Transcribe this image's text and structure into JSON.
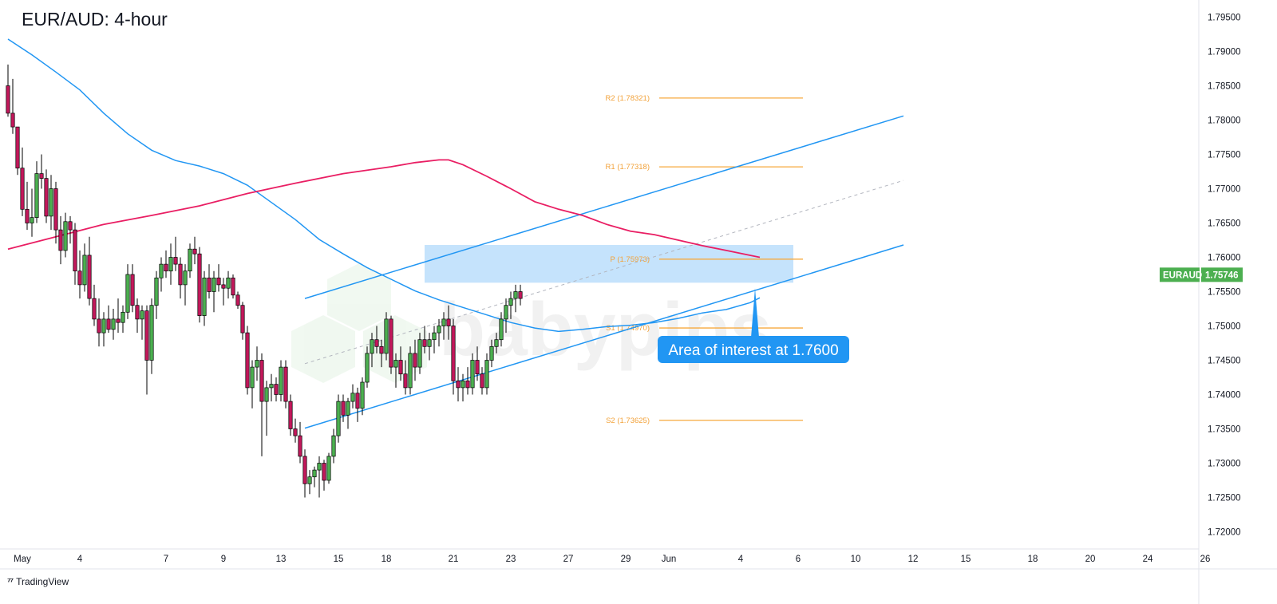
{
  "title": "EUR/AUD: 4-hour",
  "brand": "TradingView",
  "watermark": "babypips",
  "callout": "Area of interest at 1.7600",
  "price_badge": {
    "symbol": "EURAUD",
    "price": "1.75746"
  },
  "colors": {
    "bull": "#4caf50",
    "bear": "#c2185b",
    "ma_fast": "#2196f3",
    "ma_slow": "#e91e63",
    "channel": "#2196f3",
    "pivot": "#f7a93c",
    "zone": "#bbdefb",
    "callout": "#2196f3"
  },
  "chart_data": {
    "type": "candlestick",
    "symbol": "EURAUD",
    "timeframe": "4-hour",
    "ylim": [
      1.7175,
      1.7975
    ],
    "y_ticks": [
      "1.79500",
      "1.79000",
      "1.78500",
      "1.78000",
      "1.77500",
      "1.77000",
      "1.76500",
      "1.76000",
      "1.75500",
      "1.75000",
      "1.74500",
      "1.74000",
      "1.73500",
      "1.73000",
      "1.72500",
      "1.72000"
    ],
    "x_ticks": [
      {
        "label": "May",
        "bar": 3
      },
      {
        "label": "4",
        "bar": 15
      },
      {
        "label": "7",
        "bar": 33
      },
      {
        "label": "9",
        "bar": 45
      },
      {
        "label": "13",
        "bar": 57
      },
      {
        "label": "15",
        "bar": 69
      },
      {
        "label": "18",
        "bar": 79
      },
      {
        "label": "21",
        "bar": 93
      },
      {
        "label": "23",
        "bar": 105
      },
      {
        "label": "27",
        "bar": 117
      },
      {
        "label": "29",
        "bar": 129
      },
      {
        "label": "Jun",
        "bar": 138
      },
      {
        "label": "4",
        "bar": 153
      },
      {
        "label": "6",
        "bar": 165
      },
      {
        "label": "10",
        "bar": 177
      },
      {
        "label": "12",
        "bar": 189
      },
      {
        "label": "15",
        "bar": 200
      },
      {
        "label": "18",
        "bar": 214
      },
      {
        "label": "20",
        "bar": 226
      },
      {
        "label": "24",
        "bar": 238
      },
      {
        "label": "26",
        "bar": 250
      }
    ],
    "last_price": 1.75746,
    "pivots": [
      {
        "label": "R2 (1.78321)",
        "value": 1.78321
      },
      {
        "label": "R1 (1.77318)",
        "value": 1.77318
      },
      {
        "label": "P (1.75973)",
        "value": 1.75973
      },
      {
        "label": "S1 (1.74970)",
        "value": 1.7497
      },
      {
        "label": "S2 (1.73625)",
        "value": 1.73625
      }
    ],
    "zone": {
      "bar_start": 87,
      "bar_end": 164,
      "low": 1.7563,
      "high": 1.7618
    },
    "channel": {
      "lower": [
        [
          62,
          1.7351
        ],
        [
          187,
          1.7618
        ]
      ],
      "upper": [
        [
          62,
          1.754
        ],
        [
          187,
          1.7806
        ]
      ],
      "middle": [
        [
          62,
          1.7445
        ],
        [
          187,
          1.7712
        ]
      ]
    },
    "ma_fast": [
      [
        0,
        1.7918
      ],
      [
        5,
        1.7895
      ],
      [
        10,
        1.787
      ],
      [
        15,
        1.7844
      ],
      [
        20,
        1.781
      ],
      [
        25,
        1.778
      ],
      [
        30,
        1.7756
      ],
      [
        35,
        1.7741
      ],
      [
        40,
        1.7733
      ],
      [
        45,
        1.7722
      ],
      [
        50,
        1.7705
      ],
      [
        55,
        1.768
      ],
      [
        60,
        1.7655
      ],
      [
        65,
        1.7626
      ],
      [
        70,
        1.7605
      ],
      [
        75,
        1.7585
      ],
      [
        80,
        1.7568
      ],
      [
        85,
        1.7551
      ],
      [
        90,
        1.7538
      ],
      [
        95,
        1.7527
      ],
      [
        100,
        1.7516
      ],
      [
        105,
        1.7505
      ],
      [
        110,
        1.7497
      ],
      [
        115,
        1.7492
      ],
      [
        120,
        1.7495
      ],
      [
        125,
        1.7499
      ],
      [
        130,
        1.7501
      ],
      [
        135,
        1.7505
      ],
      [
        140,
        1.7511
      ],
      [
        145,
        1.7519
      ],
      [
        150,
        1.7524
      ],
      [
        155,
        1.7534
      ],
      [
        157,
        1.7541
      ]
    ],
    "ma_slow": [
      [
        0,
        1.7612
      ],
      [
        10,
        1.763
      ],
      [
        20,
        1.7648
      ],
      [
        30,
        1.7661
      ],
      [
        40,
        1.7675
      ],
      [
        50,
        1.7693
      ],
      [
        60,
        1.7708
      ],
      [
        70,
        1.7722
      ],
      [
        80,
        1.7732
      ],
      [
        85,
        1.7738
      ],
      [
        90,
        1.7742
      ],
      [
        92,
        1.7742
      ],
      [
        95,
        1.7735
      ],
      [
        100,
        1.7718
      ],
      [
        105,
        1.77
      ],
      [
        110,
        1.7681
      ],
      [
        115,
        1.767
      ],
      [
        120,
        1.7661
      ],
      [
        125,
        1.7648
      ],
      [
        130,
        1.7638
      ],
      [
        135,
        1.7633
      ],
      [
        140,
        1.7625
      ],
      [
        145,
        1.7617
      ],
      [
        150,
        1.761
      ],
      [
        157,
        1.76
      ]
    ],
    "candles": [
      [
        1.785,
        1.7881,
        1.7805,
        1.781
      ],
      [
        1.781,
        1.786,
        1.778,
        1.779
      ],
      [
        1.779,
        1.779,
        1.772,
        1.773
      ],
      [
        1.773,
        1.776,
        1.766,
        1.767
      ],
      [
        1.767,
        1.771,
        1.764,
        1.765
      ],
      [
        1.765,
        1.77,
        1.763,
        1.7658
      ],
      [
        1.7658,
        1.774,
        1.765,
        1.7722
      ],
      [
        1.7722,
        1.775,
        1.77,
        1.7715
      ],
      [
        1.7715,
        1.7728,
        1.765,
        1.766
      ],
      [
        1.766,
        1.772,
        1.764,
        1.77
      ],
      [
        1.77,
        1.771,
        1.762,
        1.764
      ],
      [
        1.764,
        1.766,
        1.759,
        1.761
      ],
      [
        1.761,
        1.7665,
        1.76,
        1.7652
      ],
      [
        1.7652,
        1.766,
        1.762,
        1.764
      ],
      [
        1.764,
        1.765,
        1.756,
        1.758
      ],
      [
        1.758,
        1.761,
        1.754,
        1.756
      ],
      [
        1.756,
        1.762,
        1.755,
        1.7603
      ],
      [
        1.7603,
        1.763,
        1.753,
        1.754
      ],
      [
        1.754,
        1.756,
        1.75,
        1.751
      ],
      [
        1.751,
        1.754,
        1.747,
        1.749
      ],
      [
        1.749,
        1.752,
        1.747,
        1.751
      ],
      [
        1.751,
        1.753,
        1.749,
        1.7495
      ],
      [
        1.7495,
        1.7525,
        1.748,
        1.751
      ],
      [
        1.751,
        1.754,
        1.749,
        1.7505
      ],
      [
        1.7505,
        1.753,
        1.749,
        1.752
      ],
      [
        1.752,
        1.759,
        1.751,
        1.7575
      ],
      [
        1.7575,
        1.759,
        1.752,
        1.753
      ],
      [
        1.753,
        1.754,
        1.749,
        1.751
      ],
      [
        1.751,
        1.753,
        1.748,
        1.7522
      ],
      [
        1.7522,
        1.753,
        1.74,
        1.745
      ],
      [
        1.745,
        1.754,
        1.743,
        1.753
      ],
      [
        1.753,
        1.758,
        1.751,
        1.757
      ],
      [
        1.757,
        1.76,
        1.755,
        1.759
      ],
      [
        1.759,
        1.761,
        1.757,
        1.758
      ],
      [
        1.758,
        1.762,
        1.756,
        1.76
      ],
      [
        1.76,
        1.763,
        1.758,
        1.759
      ],
      [
        1.759,
        1.76,
        1.754,
        1.756
      ],
      [
        1.756,
        1.759,
        1.753,
        1.758
      ],
      [
        1.758,
        1.762,
        1.757,
        1.7612
      ],
      [
        1.7612,
        1.763,
        1.759,
        1.7605
      ],
      [
        1.7605,
        1.7615,
        1.7505,
        1.7515
      ],
      [
        1.7515,
        1.758,
        1.75,
        1.757
      ],
      [
        1.757,
        1.759,
        1.754,
        1.755
      ],
      [
        1.755,
        1.758,
        1.752,
        1.757
      ],
      [
        1.757,
        1.759,
        1.755,
        1.756
      ],
      [
        1.756,
        1.757,
        1.753,
        1.7555
      ],
      [
        1.7555,
        1.758,
        1.754,
        1.757
      ],
      [
        1.757,
        1.7575,
        1.754,
        1.7545
      ],
      [
        1.7545,
        1.755,
        1.7525,
        1.753
      ],
      [
        1.753,
        1.7535,
        1.748,
        1.749
      ],
      [
        1.749,
        1.75,
        1.74,
        1.741
      ],
      [
        1.741,
        1.745,
        1.738,
        1.744
      ],
      [
        1.744,
        1.747,
        1.742,
        1.745
      ],
      [
        1.745,
        1.746,
        1.731,
        1.739
      ],
      [
        1.739,
        1.742,
        1.734,
        1.741
      ],
      [
        1.741,
        1.743,
        1.739,
        1.7415
      ],
      [
        1.7415,
        1.7425,
        1.739,
        1.74
      ],
      [
        1.74,
        1.745,
        1.739,
        1.744
      ],
      [
        1.744,
        1.745,
        1.738,
        1.739
      ],
      [
        1.739,
        1.74,
        1.734,
        1.735
      ],
      [
        1.735,
        1.7365,
        1.733,
        1.734
      ],
      [
        1.734,
        1.736,
        1.73,
        1.731
      ],
      [
        1.731,
        1.732,
        1.725,
        1.727
      ],
      [
        1.727,
        1.729,
        1.7255,
        1.728
      ],
      [
        1.728,
        1.7295,
        1.7265,
        1.729
      ],
      [
        1.729,
        1.731,
        1.725,
        1.73
      ],
      [
        1.73,
        1.7305,
        1.726,
        1.7275
      ],
      [
        1.7275,
        1.7315,
        1.727,
        1.731
      ],
      [
        1.731,
        1.735,
        1.73,
        1.734
      ],
      [
        1.734,
        1.74,
        1.733,
        1.739
      ],
      [
        1.739,
        1.74,
        1.736,
        1.737
      ],
      [
        1.737,
        1.7395,
        1.735,
        1.739
      ],
      [
        1.739,
        1.7415,
        1.738,
        1.7402
      ],
      [
        1.7402,
        1.741,
        1.736,
        1.738
      ],
      [
        1.738,
        1.7425,
        1.737,
        1.7418
      ],
      [
        1.7418,
        1.747,
        1.741,
        1.746
      ],
      [
        1.746,
        1.749,
        1.744,
        1.748
      ],
      [
        1.748,
        1.75,
        1.746,
        1.747
      ],
      [
        1.747,
        1.748,
        1.744,
        1.746
      ],
      [
        1.746,
        1.752,
        1.745,
        1.751
      ],
      [
        1.751,
        1.7515,
        1.743,
        1.744
      ],
      [
        1.744,
        1.746,
        1.741,
        1.745
      ],
      [
        1.745,
        1.747,
        1.742,
        1.743
      ],
      [
        1.743,
        1.745,
        1.74,
        1.741
      ],
      [
        1.741,
        1.747,
        1.74,
        1.746
      ],
      [
        1.746,
        1.748,
        1.742,
        1.744
      ],
      [
        1.744,
        1.749,
        1.743,
        1.748
      ],
      [
        1.748,
        1.75,
        1.746,
        1.747
      ],
      [
        1.747,
        1.749,
        1.745,
        1.748
      ],
      [
        1.748,
        1.75,
        1.746,
        1.749
      ],
      [
        1.749,
        1.751,
        1.747,
        1.75
      ],
      [
        1.75,
        1.752,
        1.748,
        1.751
      ],
      [
        1.751,
        1.753,
        1.748,
        1.75
      ],
      [
        1.75,
        1.751,
        1.74,
        1.742
      ],
      [
        1.742,
        1.744,
        1.739,
        1.741
      ],
      [
        1.741,
        1.743,
        1.739,
        1.742
      ],
      [
        1.742,
        1.744,
        1.74,
        1.741
      ],
      [
        1.741,
        1.746,
        1.74,
        1.745
      ],
      [
        1.745,
        1.747,
        1.742,
        1.743
      ],
      [
        1.743,
        1.744,
        1.74,
        1.741
      ],
      [
        1.741,
        1.746,
        1.74,
        1.745
      ],
      [
        1.745,
        1.748,
        1.744,
        1.747
      ],
      [
        1.747,
        1.749,
        1.746,
        1.748
      ],
      [
        1.748,
        1.752,
        1.747,
        1.751
      ],
      [
        1.751,
        1.754,
        1.749,
        1.753
      ],
      [
        1.753,
        1.755,
        1.751,
        1.754
      ],
      [
        1.754,
        1.756,
        1.752,
        1.755
      ],
      [
        1.755,
        1.756,
        1.753,
        1.754
      ]
    ]
  }
}
